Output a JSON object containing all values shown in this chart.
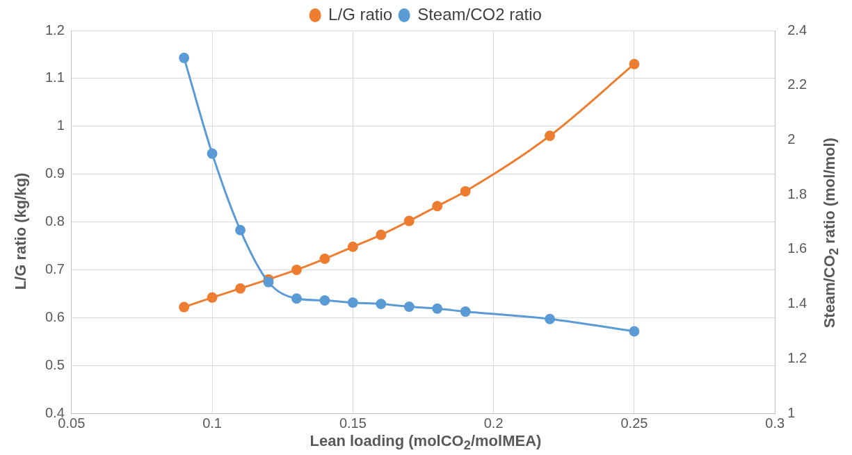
{
  "chart_data": {
    "type": "line",
    "xlabel": "Lean loading (molCO$_{2}$/molMEA)",
    "ylabel": "L/G ratio (kg/kg)",
    "y2label": "Steam/CO$_{2}$ ratio (mol/mol)",
    "x": [
      0.09,
      0.1,
      0.11,
      0.12,
      0.13,
      0.14,
      0.15,
      0.16,
      0.17,
      0.18,
      0.19,
      0.22,
      0.25
    ],
    "series": [
      {
        "name": "L/G ratio",
        "color": "#ed7d31",
        "values": [
          0.622,
          0.642,
          0.661,
          0.68,
          0.7,
          0.723,
          0.748,
          0.773,
          0.802,
          0.833,
          0.864,
          0.98,
          1.13
        ]
      },
      {
        "name": "Steam/CO2 ratio",
        "color": "#5b9bd5",
        "axis": "y2",
        "values": [
          2.3,
          1.95,
          1.67,
          1.48,
          1.42,
          1.413,
          1.405,
          1.4,
          1.39,
          1.383,
          1.372,
          1.345,
          1.3
        ]
      }
    ],
    "xlim": [
      0.05,
      0.3
    ],
    "xticks": [
      0.05,
      0.1,
      0.15,
      0.2,
      0.25,
      0.3
    ],
    "ylim": [
      0.4,
      1.2
    ],
    "yticks": [
      0.4,
      0.5,
      0.6,
      0.7,
      0.8,
      0.9,
      1,
      1.1,
      1.2
    ],
    "y2lim": [
      1,
      2.4
    ],
    "y2ticks": [
      1,
      1.2,
      1.4,
      1.6,
      1.8,
      2,
      2.2,
      2.4
    ],
    "grid": true,
    "legend": "top",
    "marker": "circle",
    "line_style": "solid"
  }
}
